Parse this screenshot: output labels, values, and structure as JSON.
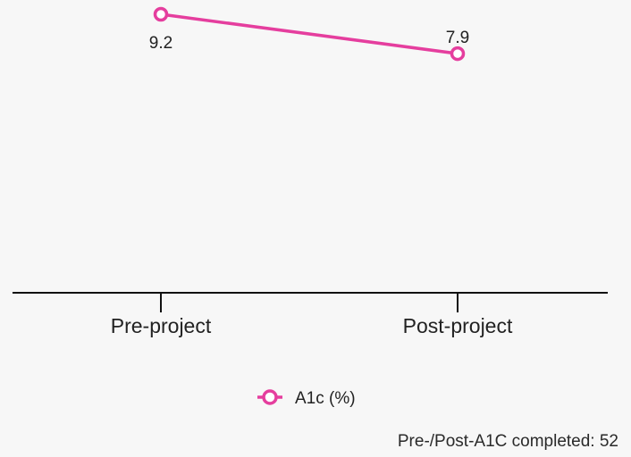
{
  "chart_data": {
    "type": "line",
    "categories": [
      "Pre-project",
      "Post-project"
    ],
    "series": [
      {
        "name": "A1c (%)",
        "values": [
          9.2,
          7.9
        ],
        "color": "#e53e9e"
      }
    ],
    "data_labels": [
      "9.2",
      "7.9"
    ],
    "ylim": [
      0,
      9.2
    ],
    "grid": false,
    "legend_position": "bottom-center",
    "xlabel": "",
    "ylabel": ""
  },
  "footnote": "Pre-/Post-A1C completed: 52"
}
